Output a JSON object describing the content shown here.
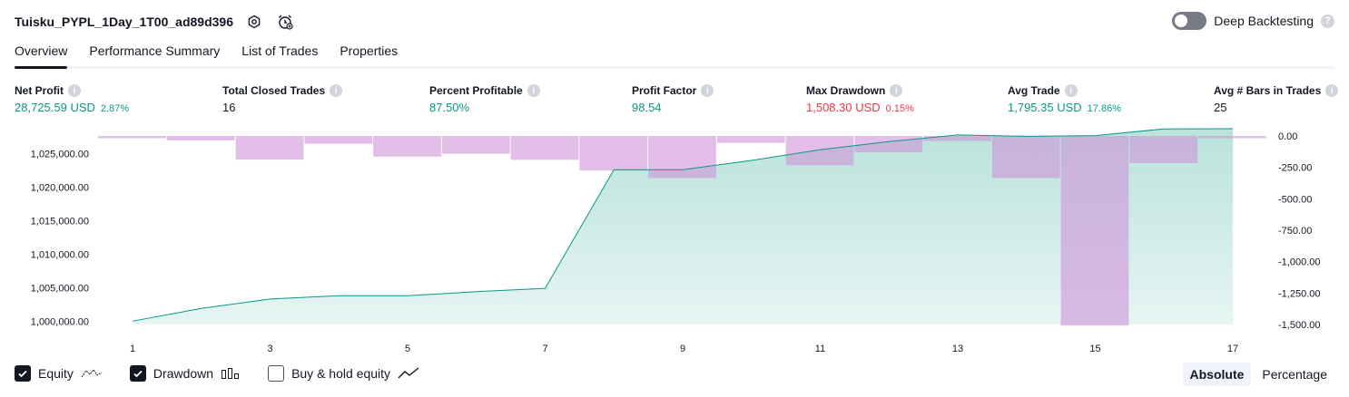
{
  "header": {
    "strategy_name": "Tuisku_PYPL_1Day_1T00_ad89d396"
  },
  "deep_backtesting": {
    "label": "Deep Backtesting",
    "enabled": false
  },
  "tabs": [
    {
      "label": "Overview",
      "active": true
    },
    {
      "label": "Performance Summary",
      "active": false
    },
    {
      "label": "List of Trades",
      "active": false
    },
    {
      "label": "Properties",
      "active": false
    }
  ],
  "metrics": {
    "net_profit": {
      "label": "Net Profit",
      "value": "28,725.59 USD",
      "pct": "2.87%"
    },
    "total_closed_trades": {
      "label": "Total Closed Trades",
      "value": "16"
    },
    "percent_profitable": {
      "label": "Percent Profitable",
      "value": "87.50%"
    },
    "profit_factor": {
      "label": "Profit Factor",
      "value": "98.54"
    },
    "max_drawdown": {
      "label": "Max Drawdown",
      "value": "1,508.30 USD",
      "pct": "0.15%"
    },
    "avg_trade": {
      "label": "Avg Trade",
      "value": "1,795.35 USD",
      "pct": "17.86%"
    },
    "avg_bars": {
      "label": "Avg # Bars in Trades",
      "value": "25"
    }
  },
  "chart_data": {
    "type": "area",
    "x": [
      1,
      2,
      3,
      4,
      5,
      6,
      7,
      8,
      9,
      10,
      11,
      12,
      13,
      14,
      15,
      16,
      17
    ],
    "x_tick_labels": [
      "1",
      "3",
      "5",
      "7",
      "9",
      "11",
      "13",
      "15",
      "17"
    ],
    "equity": {
      "name": "Equity",
      "values": [
        1000000,
        1001900,
        1003300,
        1003800,
        1003800,
        1004400,
        1004900,
        1022600,
        1022600,
        1024000,
        1025600,
        1026800,
        1027800,
        1027600,
        1027700,
        1028700,
        1028725.59
      ],
      "left_axis_ticks": [
        "1,000,000.00",
        "1,005,000.00",
        "1,010,000.00",
        "1,015,000.00",
        "1,020,000.00",
        "1,025,000.00"
      ],
      "ylim": [
        999500,
        1029000
      ]
    },
    "drawdown": {
      "name": "Drawdown",
      "values": [
        -18,
        -35,
        -188,
        -62,
        -165,
        -142,
        -190,
        -275,
        -335,
        -55,
        -233,
        -130,
        -40,
        -335,
        -1508.3,
        -215,
        -18
      ],
      "right_axis_ticks": [
        "0.00",
        "-250.00",
        "-500.00",
        "-750.00",
        "-1,000.00",
        "-1,250.00",
        "-1,500.00"
      ],
      "ylim": [
        -1500,
        0
      ]
    },
    "colors": {
      "equity_line": "#089981",
      "equity_fill": "#089981",
      "drawdown_bar": "#ce93d8"
    }
  },
  "legend": {
    "equity": {
      "label": "Equity",
      "checked": true
    },
    "drawdown": {
      "label": "Drawdown",
      "checked": true
    },
    "buy_hold": {
      "label": "Buy & hold equity",
      "checked": false
    }
  },
  "mode": {
    "absolute": "Absolute",
    "percentage": "Percentage",
    "active": "absolute"
  }
}
